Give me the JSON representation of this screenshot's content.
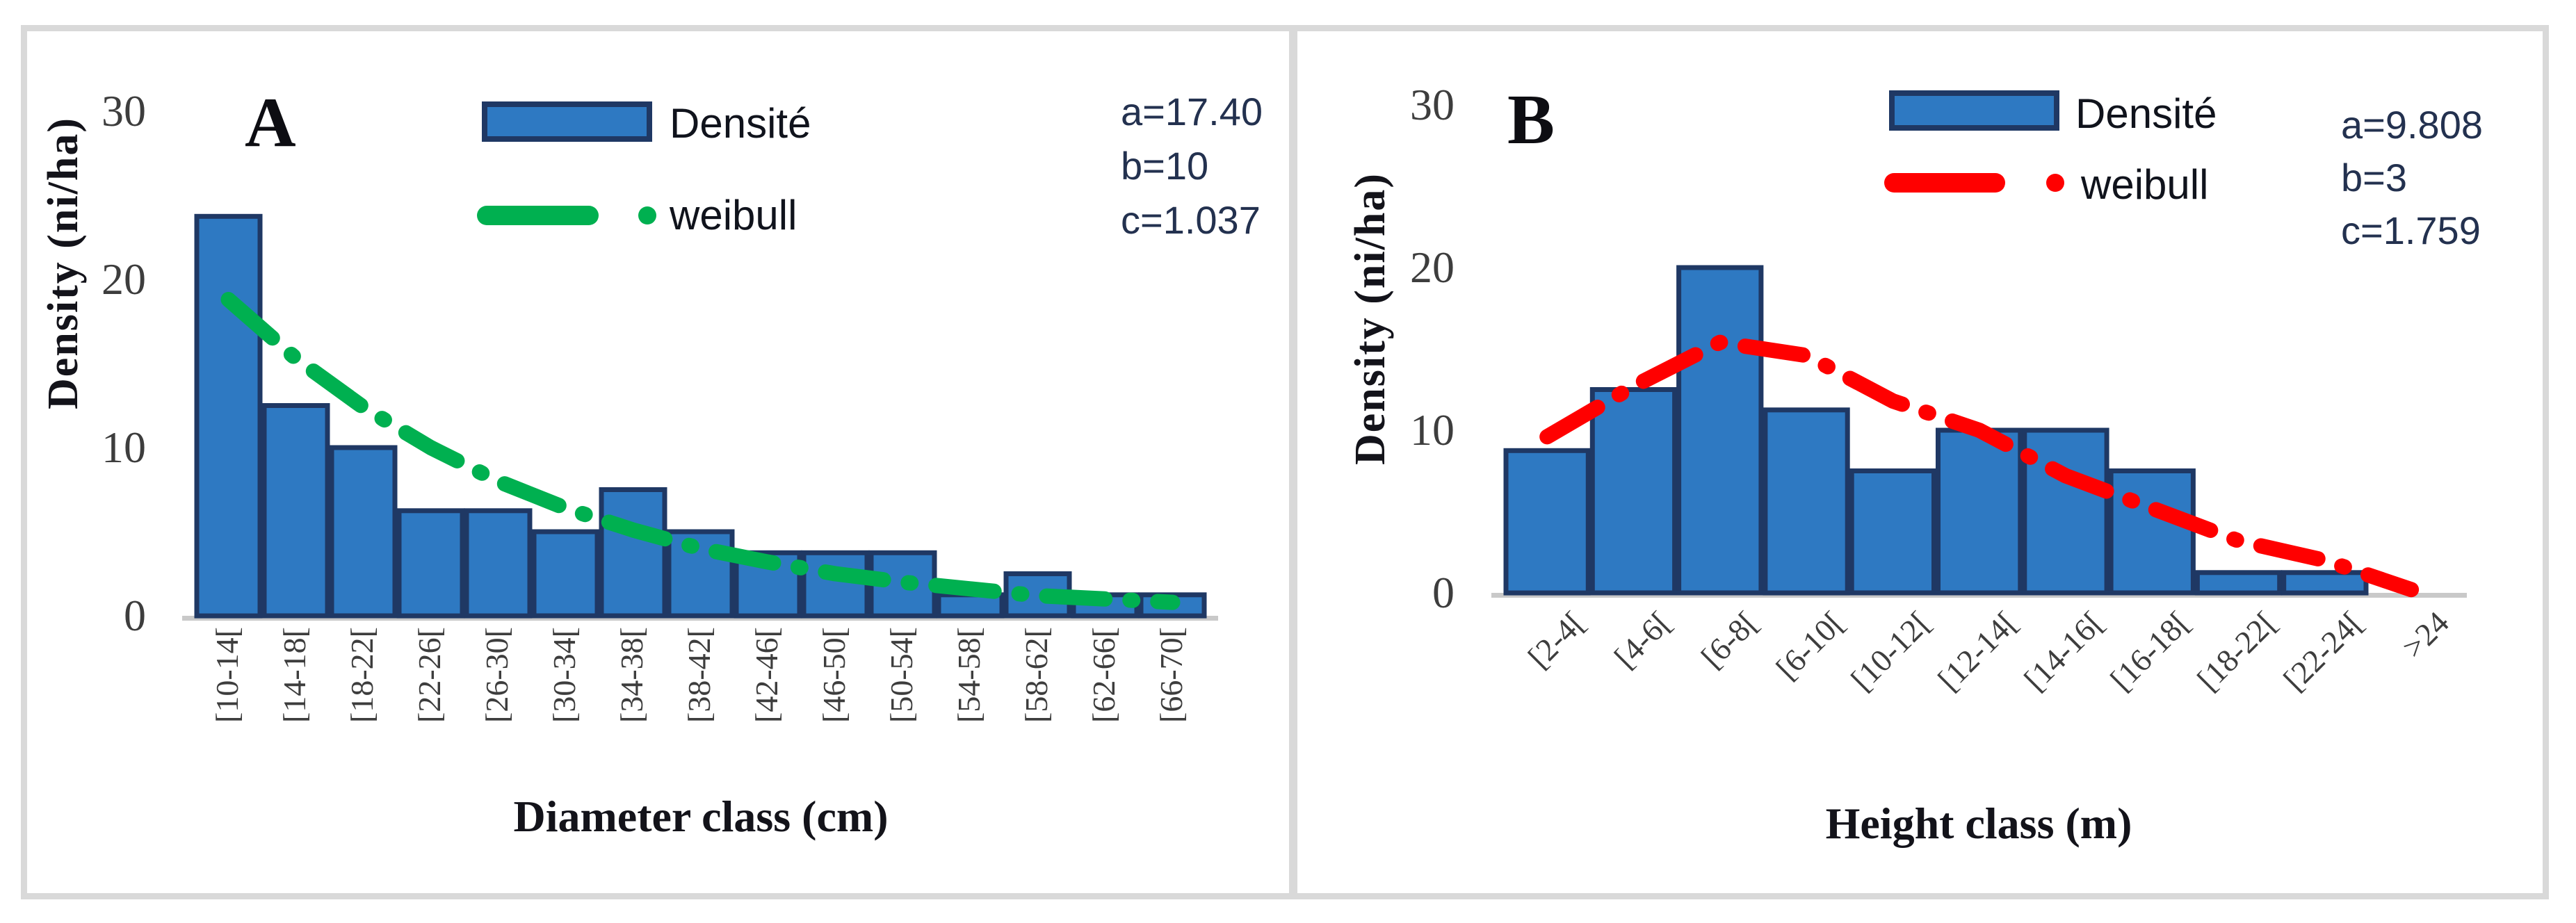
{
  "figure": {
    "background": "#ffffff",
    "frame_color": "#d9d9d9",
    "axis_line_color": "#c9c9c9",
    "tick_label_color": "#3d3d3d"
  },
  "chart_data": [
    {
      "type": "bar",
      "panel_label": "A",
      "xlabel": "Diameter class (cm)",
      "ylabel": "Density (ni/ha)",
      "ylim": [
        0,
        30
      ],
      "yticks": [
        0,
        10,
        20,
        30
      ],
      "grid": false,
      "legend_position": "top",
      "category_label_rotation": "vertical-bottom-to-top",
      "categories": [
        "[10-14[",
        "[14-18[",
        "[18-22[",
        "[22-26[",
        "[26-30[",
        "[30-34[",
        "[34-38[",
        "[38-42[",
        "[42-46[",
        "[46-50[",
        "[50-54[",
        "[54-58[",
        "[58-62[",
        "[62-66[",
        "[66-70["
      ],
      "series": [
        {
          "name": "Densité",
          "type": "bar",
          "color": "#2E79C2",
          "border_color": "#1F3864",
          "values": [
            23.75,
            12.5,
            10,
            6.25,
            6.25,
            5,
            7.5,
            5,
            3.75,
            3.75,
            3.75,
            1.25,
            2.5,
            1.25,
            1.25
          ]
        },
        {
          "name": "weibull",
          "type": "line",
          "line_style": "long-dash-dot",
          "color": "#00B050",
          "values": [
            18.8,
            15.3,
            12.4,
            10.0,
            8.0,
            6.4,
            5.1,
            4.0,
            3.2,
            2.5,
            2.0,
            1.6,
            1.2,
            1.0,
            0.8
          ]
        }
      ],
      "params": [
        "a=17.40",
        "b=10",
        "c=1.037"
      ]
    },
    {
      "type": "bar",
      "panel_label": "B",
      "xlabel": "Height class (m)",
      "ylabel": "Density (ni/ha)",
      "ylim": [
        0,
        30
      ],
      "yticks": [
        0,
        10,
        20,
        30
      ],
      "grid": false,
      "legend_position": "top",
      "category_label_rotation": "angled-45",
      "categories": [
        "[2-4[",
        "[4-6[",
        "[6-8[",
        "[6-10[",
        "[10-12[",
        "[12-14[",
        "[14-16[",
        "[16-18[",
        "[18-22[",
        "[22-24[",
        ">24"
      ],
      "series": [
        {
          "name": "Densité",
          "type": "bar",
          "color": "#2E79C2",
          "border_color": "#1F3864",
          "values": [
            8.75,
            12.5,
            20,
            11.25,
            7.5,
            10,
            10,
            7.5,
            1.25,
            1.25,
            0
          ]
        },
        {
          "name": "weibull",
          "type": "line",
          "line_style": "long-dash-dot",
          "color": "#FF0000",
          "values": [
            9.6,
            12.7,
            15.4,
            14.6,
            11.8,
            10.0,
            7.2,
            5.2,
            3.2,
            2.0,
            0.2
          ]
        }
      ],
      "params": [
        "a=9.808",
        "b=3",
        "c=1.759"
      ]
    }
  ]
}
